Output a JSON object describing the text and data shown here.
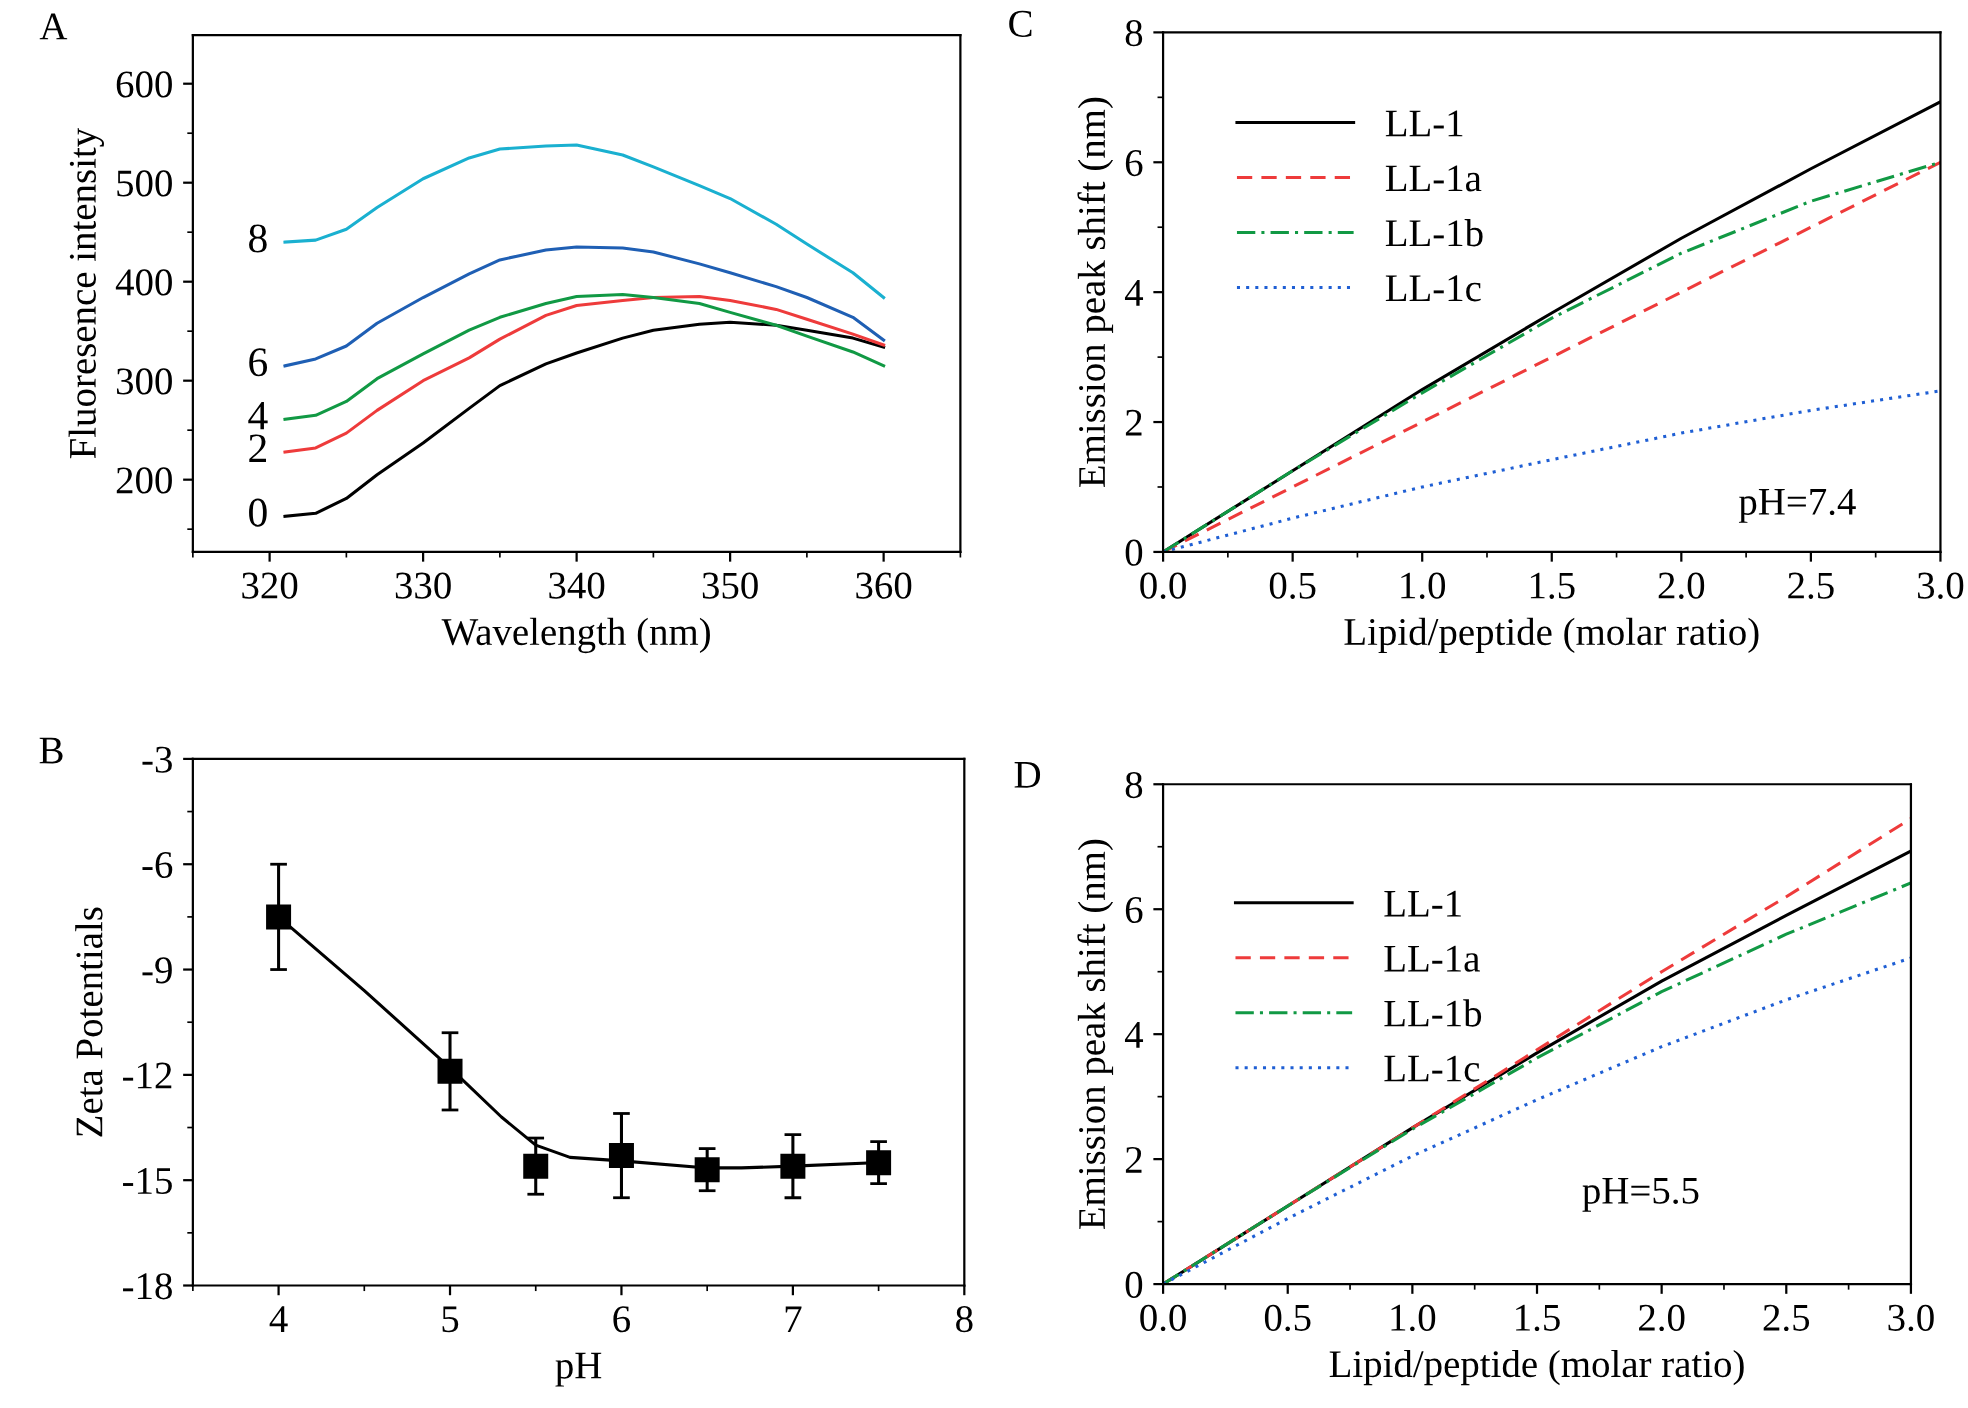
{
  "chart_data": [
    {
      "type": "line",
      "title": "A",
      "xlabel": "Wavelength (nm)",
      "ylabel": "Fluoresence intensity",
      "xlim": [
        315,
        365
      ],
      "ylim": [
        127,
        649
      ],
      "xticks": [
        320,
        330,
        340,
        350,
        360
      ],
      "yticks": [
        200,
        300,
        400,
        500,
        600
      ],
      "marker": "none",
      "line_style": "solid",
      "annotations": [
        "0",
        "2",
        "4",
        "6",
        "8"
      ],
      "x": [
        321,
        323,
        325,
        327,
        330,
        333,
        335,
        338,
        340,
        343,
        345,
        348,
        350,
        353,
        355,
        358,
        360
      ],
      "series": [
        {
          "color": "#000000",
          "values": [
            163,
            166,
            181,
            205,
            237,
            272,
            295,
            317,
            328,
            343,
            351,
            357,
            359,
            356,
            351,
            343,
            334
          ]
        },
        {
          "color": "#ee3b3b",
          "values": [
            228,
            232,
            247,
            270,
            300,
            323,
            342,
            366,
            376,
            381,
            384,
            385,
            381,
            372,
            362,
            347,
            336
          ]
        },
        {
          "color": "#119944",
          "values": [
            261,
            265,
            279,
            302,
            327,
            351,
            364,
            378,
            385,
            387,
            384,
            378,
            369,
            356,
            345,
            329,
            315
          ]
        },
        {
          "color": "#1f5fb4",
          "values": [
            315,
            322,
            335,
            358,
            384,
            408,
            422,
            432,
            435,
            434,
            430,
            418,
            409,
            395,
            384,
            364,
            341
          ]
        },
        {
          "color": "#1ab0d0",
          "values": [
            440,
            442,
            453,
            475,
            504,
            525,
            534,
            537,
            538,
            528,
            516,
            497,
            484,
            458,
            438,
            409,
            384
          ]
        }
      ]
    },
    {
      "type": "line",
      "title": "C",
      "xlabel": "Lipid/peptide (molar ratio)",
      "ylabel": "Emission peak shift (nm)",
      "xlim": [
        0,
        3
      ],
      "ylim": [
        0,
        8
      ],
      "xticks": [
        {
          "value": 0,
          "label": "0.0"
        },
        0.5,
        {
          "value": 1,
          "label": "1.0"
        },
        1.5,
        {
          "value": 2,
          "label": "2.0"
        },
        2.5,
        {
          "value": 3,
          "label": "3.0"
        }
      ],
      "yticks": [
        0,
        2,
        4,
        6,
        8
      ],
      "legend": "top left",
      "marker": "none",
      "annotations": [
        "pH=7.4"
      ],
      "x": [
        0,
        0.5,
        1,
        1.5,
        2,
        2.5,
        3
      ],
      "series": [
        {
          "name": "LL-1",
          "color": "#000000",
          "line_style": "solid",
          "values": [
            0,
            1.25,
            2.5,
            3.68,
            4.83,
            5.9,
            6.93
          ]
        },
        {
          "name": "LL-1a",
          "color": "#ee3b3b",
          "line_style": "dashed",
          "values": [
            0,
            1.0,
            2.0,
            3.0,
            4.0,
            5.0,
            6.0
          ]
        },
        {
          "name": "LL-1b",
          "color": "#119944",
          "line_style": "dashdot",
          "values": [
            0,
            1.25,
            2.45,
            3.6,
            4.6,
            5.4,
            6.0
          ]
        },
        {
          "name": "LL-1c",
          "color": "#1f5fd4",
          "line_style": "dotted",
          "values": [
            0,
            0.52,
            1.0,
            1.42,
            1.83,
            2.18,
            2.48
          ]
        }
      ]
    },
    {
      "type": "scatter",
      "title": "B",
      "xlabel": "pH",
      "ylabel": "Zeta Potentials",
      "xlim": [
        3.5,
        8
      ],
      "ylim": [
        -18,
        -3
      ],
      "xticks": [
        4,
        5,
        6,
        7,
        8
      ],
      "yticks": [
        -3,
        -6,
        -9,
        -12,
        -15,
        -18
      ],
      "series": [
        {
          "type": "scatter",
          "marker": "square",
          "color": "#000000",
          "x": [
            4,
            5,
            5.5,
            6,
            6.5,
            7,
            7.5
          ],
          "values": [
            -7.5,
            -11.9,
            -14.6,
            -14.3,
            -14.7,
            -14.6,
            -14.5
          ],
          "errors": [
            [
              -9.0,
              -6.0
            ],
            [
              -13.0,
              -10.8
            ],
            [
              -15.4,
              -13.8
            ],
            [
              -15.5,
              -13.1
            ],
            [
              -15.3,
              -14.1
            ],
            [
              -15.5,
              -13.7
            ],
            [
              -15.1,
              -13.9
            ]
          ]
        },
        {
          "type": "line",
          "marker": "none",
          "color": "#000000",
          "x": [
            4,
            4.5,
            5,
            5.3,
            5.5,
            5.7,
            6,
            6.5,
            6.7,
            7,
            7.5
          ],
          "values": [
            -7.5,
            -9.6,
            -11.8,
            -13.2,
            -14.0,
            -14.35,
            -14.45,
            -14.65,
            -14.65,
            -14.6,
            -14.5
          ]
        }
      ]
    },
    {
      "type": "line",
      "title": "D",
      "xlabel": "Lipid/peptide (molar ratio)",
      "ylabel": "Emission peak shift (nm)",
      "xlim": [
        0,
        3
      ],
      "ylim": [
        0,
        8
      ],
      "xticks": [
        {
          "value": 0,
          "label": "0.0"
        },
        0.5,
        {
          "value": 1,
          "label": "1.0"
        },
        1.5,
        {
          "value": 2,
          "label": "2.0"
        },
        2.5,
        {
          "value": 3,
          "label": "3.0"
        }
      ],
      "yticks": [
        0,
        2,
        4,
        6,
        8
      ],
      "legend": "top left",
      "marker": "none",
      "annotations": [
        "pH=5.5"
      ],
      "x": [
        0,
        0.5,
        1,
        1.5,
        2,
        2.5,
        3
      ],
      "series": [
        {
          "name": "LL-1",
          "color": "#000000",
          "line_style": "solid",
          "values": [
            0,
            1.25,
            2.5,
            3.7,
            4.85,
            5.9,
            6.93
          ]
        },
        {
          "name": "LL-1a",
          "color": "#ee3b3b",
          "line_style": "dashed",
          "values": [
            0,
            1.25,
            2.5,
            3.75,
            5.0,
            6.2,
            7.45
          ]
        },
        {
          "name": "LL-1b",
          "color": "#119944",
          "line_style": "dashdot",
          "values": [
            0,
            1.25,
            2.48,
            3.62,
            4.68,
            5.6,
            6.42
          ]
        },
        {
          "name": "LL-1c",
          "color": "#1f5fd4",
          "line_style": "dotted",
          "values": [
            0,
            1.05,
            2.05,
            2.95,
            3.8,
            4.55,
            5.22
          ]
        }
      ]
    }
  ]
}
